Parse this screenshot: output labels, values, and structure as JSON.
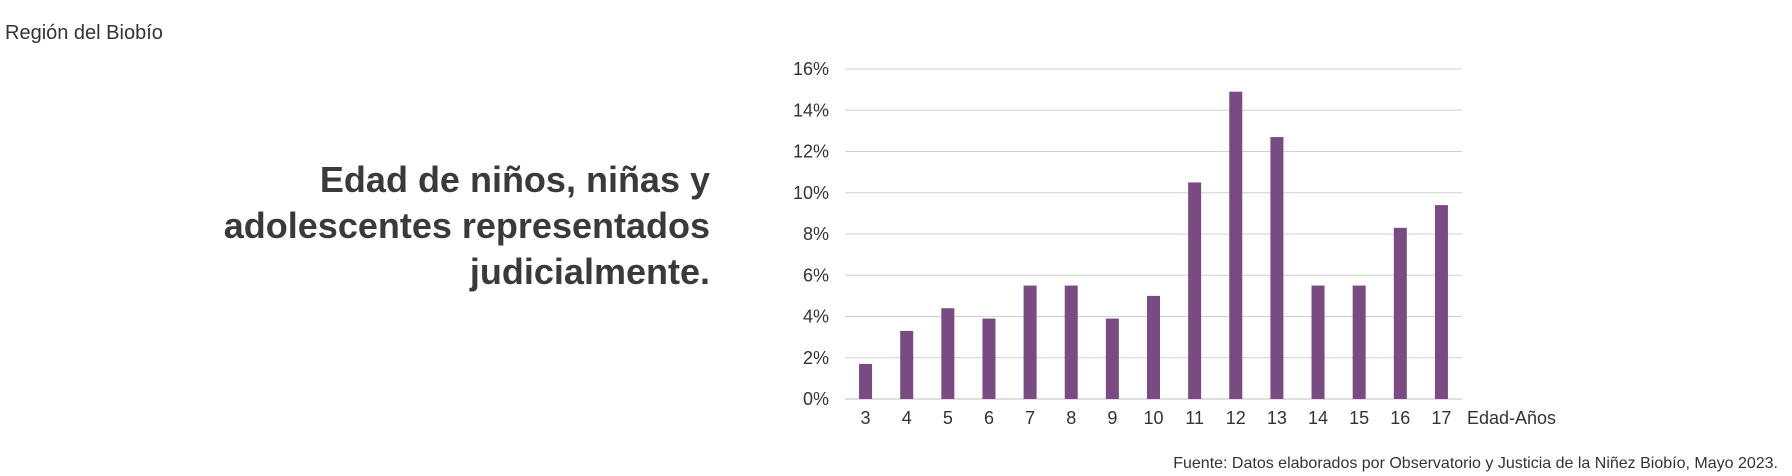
{
  "region": "Región del Biobío",
  "title": "Edad de niños, niñas y adolescentes representados judicialmente.",
  "source": "Fuente: Datos elaborados por Observatorio y Justicia de la Niñez Biobío, Mayo 2023.",
  "colors": {
    "bar": "#7a4a82",
    "grid": "#d0d0d0",
    "text": "#333333"
  },
  "chart_data": {
    "type": "bar",
    "categories": [
      "3",
      "4",
      "5",
      "6",
      "7",
      "8",
      "9",
      "10",
      "11",
      "12",
      "13",
      "14",
      "15",
      "16",
      "17"
    ],
    "values": [
      1.7,
      3.3,
      4.4,
      3.9,
      5.5,
      5.5,
      3.9,
      5.0,
      10.5,
      14.9,
      12.7,
      5.5,
      5.5,
      8.3,
      9.4
    ],
    "xlabel": "Edad-Años",
    "ylabel": "",
    "ylim": [
      0,
      16
    ],
    "yticks": [
      "0%",
      "2%",
      "4%",
      "6%",
      "8%",
      "10%",
      "12%",
      "14%",
      "16%"
    ],
    "grid": true
  }
}
